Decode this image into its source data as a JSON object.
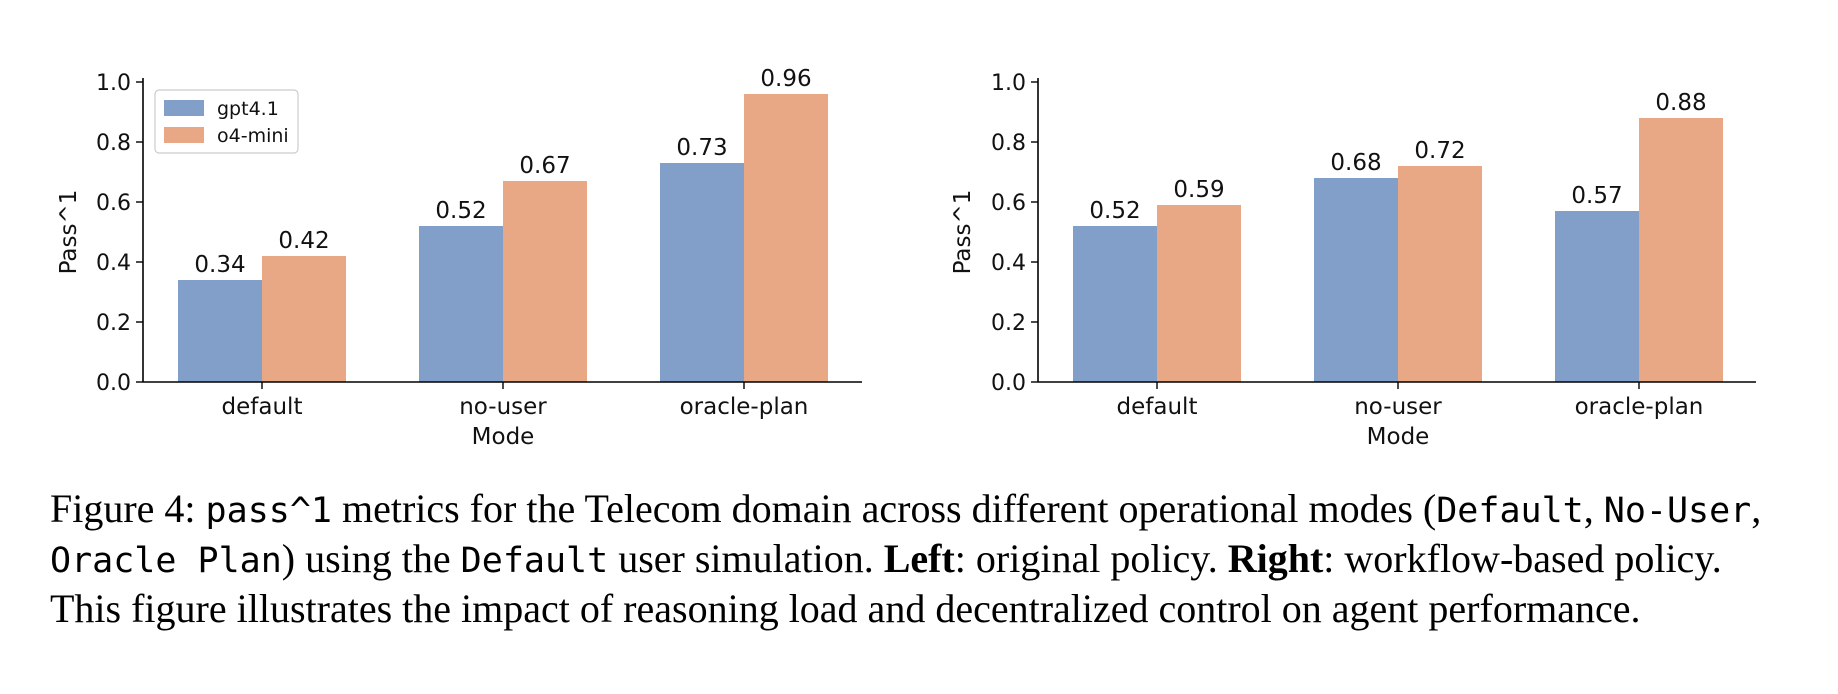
{
  "chart_data": [
    {
      "type": "bar",
      "panel": "left",
      "categories": [
        "default",
        "no-user",
        "oracle-plan"
      ],
      "series": [
        {
          "name": "gpt4.1",
          "color": "#819fc9",
          "values": [
            0.34,
            0.52,
            0.73
          ]
        },
        {
          "name": "o4-mini",
          "color": "#e8a886",
          "values": [
            0.42,
            0.67,
            0.96
          ]
        }
      ],
      "data_labels": [
        [
          "0.34",
          "0.52",
          "0.73"
        ],
        [
          "0.42",
          "0.67",
          "0.96"
        ]
      ],
      "xlabel": "Mode",
      "ylabel": "Pass^1",
      "ylim": [
        0,
        1.0
      ],
      "yticks": [
        "0.0",
        "0.2",
        "0.4",
        "0.6",
        "0.8",
        "1.0"
      ],
      "legend": "top-left",
      "grid": false
    },
    {
      "type": "bar",
      "panel": "right",
      "categories": [
        "default",
        "no-user",
        "oracle-plan"
      ],
      "series": [
        {
          "name": "gpt4.1",
          "color": "#819fc9",
          "values": [
            0.52,
            0.68,
            0.57
          ]
        },
        {
          "name": "o4-mini",
          "color": "#e8a886",
          "values": [
            0.59,
            0.72,
            0.88
          ]
        }
      ],
      "data_labels": [
        [
          "0.52",
          "0.68",
          "0.57"
        ],
        [
          "0.59",
          "0.72",
          "0.88"
        ]
      ],
      "xlabel": "Mode",
      "ylabel": "Pass^1",
      "ylim": [
        0,
        1.0
      ],
      "yticks": [
        "0.0",
        "0.2",
        "0.4",
        "0.6",
        "0.8",
        "1.0"
      ],
      "legend": "none",
      "grid": false
    }
  ],
  "caption": {
    "label": "Figure 4:",
    "metric": "pass^1",
    "t1": "metrics for the Telecom domain across different operational modes (",
    "mode1": "Default",
    "comma1": ",",
    "mode2": "No-User",
    "comma2": ",",
    "mode3": "Oracle Plan",
    "t2": ") using the",
    "mode4": "Default",
    "t3": "user simulation.",
    "left_label": "Left",
    "t4": ": original policy.",
    "right_label": "Right",
    "t5": ": workflow-based policy. This figure illustrates the impact of reasoning load and decentralized control on agent performance."
  }
}
